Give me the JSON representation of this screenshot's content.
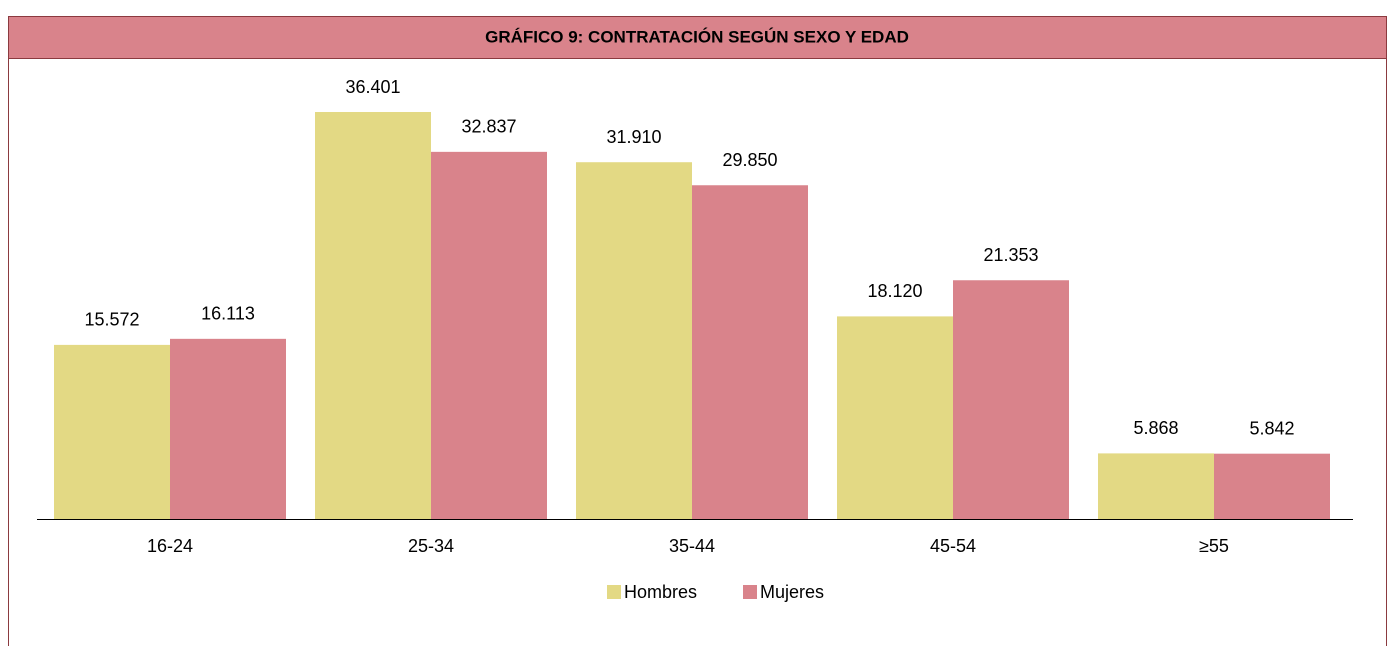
{
  "chart_data": {
    "type": "bar",
    "title": "GRÁFICO 9: CONTRATACIÓN SEGÚN SEXO Y EDAD",
    "categories": [
      "16-24",
      "25-34",
      "35-44",
      "45-54",
      "≥55"
    ],
    "series": [
      {
        "name": "Hombres",
        "color": "#e3d984",
        "values": [
          15572,
          36401,
          31910,
          18120,
          5868
        ],
        "value_labels": [
          "15.572",
          "36.401",
          "31.910",
          "18.120",
          "5.868"
        ]
      },
      {
        "name": "Mujeres",
        "color": "#d9838b",
        "values": [
          16113,
          32837,
          29850,
          21353,
          5842
        ],
        "value_labels": [
          "16.113",
          "32.837",
          "29.850",
          "21.353",
          "5.842"
        ]
      }
    ],
    "legend": "bottom"
  }
}
